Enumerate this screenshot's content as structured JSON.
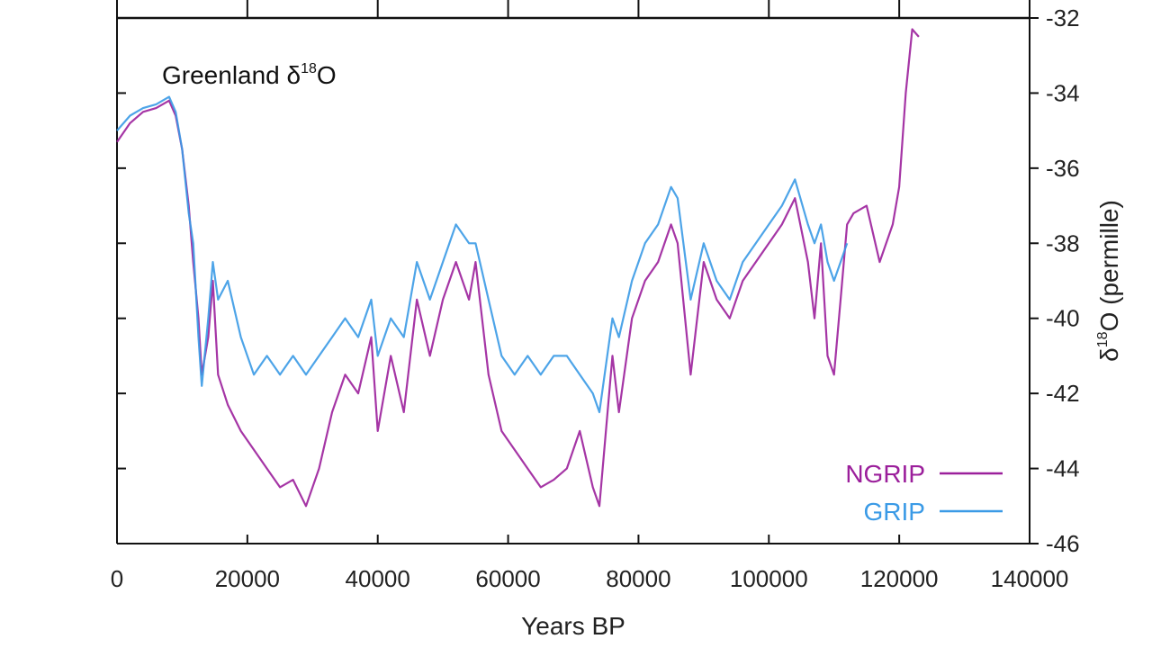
{
  "chart_data": {
    "type": "line",
    "title": "Greenland δ18O",
    "xlabel": "Years BP",
    "ylabel": "δ18O (permille)",
    "xlim": [
      0,
      140000
    ],
    "ylim": [
      -46,
      -32
    ],
    "x_ticks": [
      0,
      20000,
      40000,
      60000,
      80000,
      100000,
      120000,
      140000
    ],
    "y_ticks": [
      -32,
      -34,
      -36,
      -38,
      -40,
      -42,
      -44,
      -46
    ],
    "legend_position": "bottom-right",
    "grid": false,
    "series": [
      {
        "name": "NGRIP",
        "color": "#9b1f9b",
        "x": [
          0,
          2000,
          4000,
          6000,
          8000,
          9000,
          10000,
          11000,
          11700,
          12500,
          13000,
          14000,
          14700,
          15500,
          17000,
          19000,
          21000,
          23000,
          25000,
          27000,
          29000,
          31000,
          33000,
          35000,
          37000,
          39000,
          40000,
          42000,
          44000,
          46000,
          48000,
          50000,
          52000,
          54000,
          55000,
          57000,
          59000,
          61000,
          63000,
          65000,
          67000,
          69000,
          71000,
          73000,
          74000,
          76000,
          77000,
          79000,
          81000,
          83000,
          85000,
          86000,
          88000,
          90000,
          92000,
          94000,
          96000,
          98000,
          100000,
          102000,
          104000,
          106000,
          107000,
          108000,
          109000,
          110000,
          111000,
          112000,
          113000,
          115000,
          117000,
          119000,
          120000,
          121000,
          122000,
          123000
        ],
        "y": [
          -35.3,
          -34.8,
          -34.5,
          -34.4,
          -34.2,
          -34.6,
          -35.5,
          -37.0,
          -38.5,
          -40.0,
          -41.5,
          -40.5,
          -39.0,
          -41.5,
          -42.3,
          -43.0,
          -43.5,
          -44.0,
          -44.5,
          -44.3,
          -45.0,
          -44.0,
          -42.5,
          -41.5,
          -42.0,
          -40.5,
          -43.0,
          -41.0,
          -42.5,
          -39.5,
          -41.0,
          -39.5,
          -38.5,
          -39.5,
          -38.5,
          -41.5,
          -43.0,
          -43.5,
          -44.0,
          -44.5,
          -44.3,
          -44.0,
          -43.0,
          -44.5,
          -45.0,
          -41.0,
          -42.5,
          -40.0,
          -39.0,
          -38.5,
          -37.5,
          -38.0,
          -41.5,
          -38.5,
          -39.5,
          -40.0,
          -39.0,
          -38.5,
          -38.0,
          -37.5,
          -36.8,
          -38.5,
          -40.0,
          -38.0,
          -41.0,
          -41.5,
          -39.5,
          -37.5,
          -37.2,
          -37.0,
          -38.5,
          -37.5,
          -36.5,
          -34.0,
          -32.3,
          -32.5
        ]
      },
      {
        "name": "GRIP",
        "color": "#3a9ae6",
        "x": [
          0,
          2000,
          4000,
          6000,
          8000,
          9000,
          10000,
          11000,
          11700,
          12500,
          13000,
          14000,
          14700,
          15500,
          17000,
          19000,
          21000,
          23000,
          25000,
          27000,
          29000,
          31000,
          33000,
          35000,
          37000,
          39000,
          40000,
          42000,
          44000,
          46000,
          48000,
          50000,
          52000,
          54000,
          55000,
          57000,
          59000,
          61000,
          63000,
          65000,
          67000,
          69000,
          71000,
          73000,
          74000,
          76000,
          77000,
          79000,
          81000,
          83000,
          85000,
          86000,
          88000,
          90000,
          92000,
          94000,
          96000,
          98000,
          100000,
          102000,
          104000,
          106000,
          107000,
          108000,
          109000,
          110000,
          111000,
          112000
        ],
        "y": [
          -35.0,
          -34.6,
          -34.4,
          -34.3,
          -34.1,
          -34.5,
          -35.5,
          -37.2,
          -38.0,
          -40.5,
          -41.8,
          -40.0,
          -38.5,
          -39.5,
          -39.0,
          -40.5,
          -41.5,
          -41.0,
          -41.5,
          -41.0,
          -41.5,
          -41.0,
          -40.5,
          -40.0,
          -40.5,
          -39.5,
          -41.0,
          -40.0,
          -40.5,
          -38.5,
          -39.5,
          -38.5,
          -37.5,
          -38.0,
          -38.0,
          -39.5,
          -41.0,
          -41.5,
          -41.0,
          -41.5,
          -41.0,
          -41.0,
          -41.5,
          -42.0,
          -42.5,
          -40.0,
          -40.5,
          -39.0,
          -38.0,
          -37.5,
          -36.5,
          -36.8,
          -39.5,
          -38.0,
          -39.0,
          -39.5,
          -38.5,
          -38.0,
          -37.5,
          -37.0,
          -36.3,
          -37.5,
          -38.0,
          -37.5,
          -38.5,
          -39.0,
          -38.5,
          -38.0
        ]
      }
    ]
  }
}
